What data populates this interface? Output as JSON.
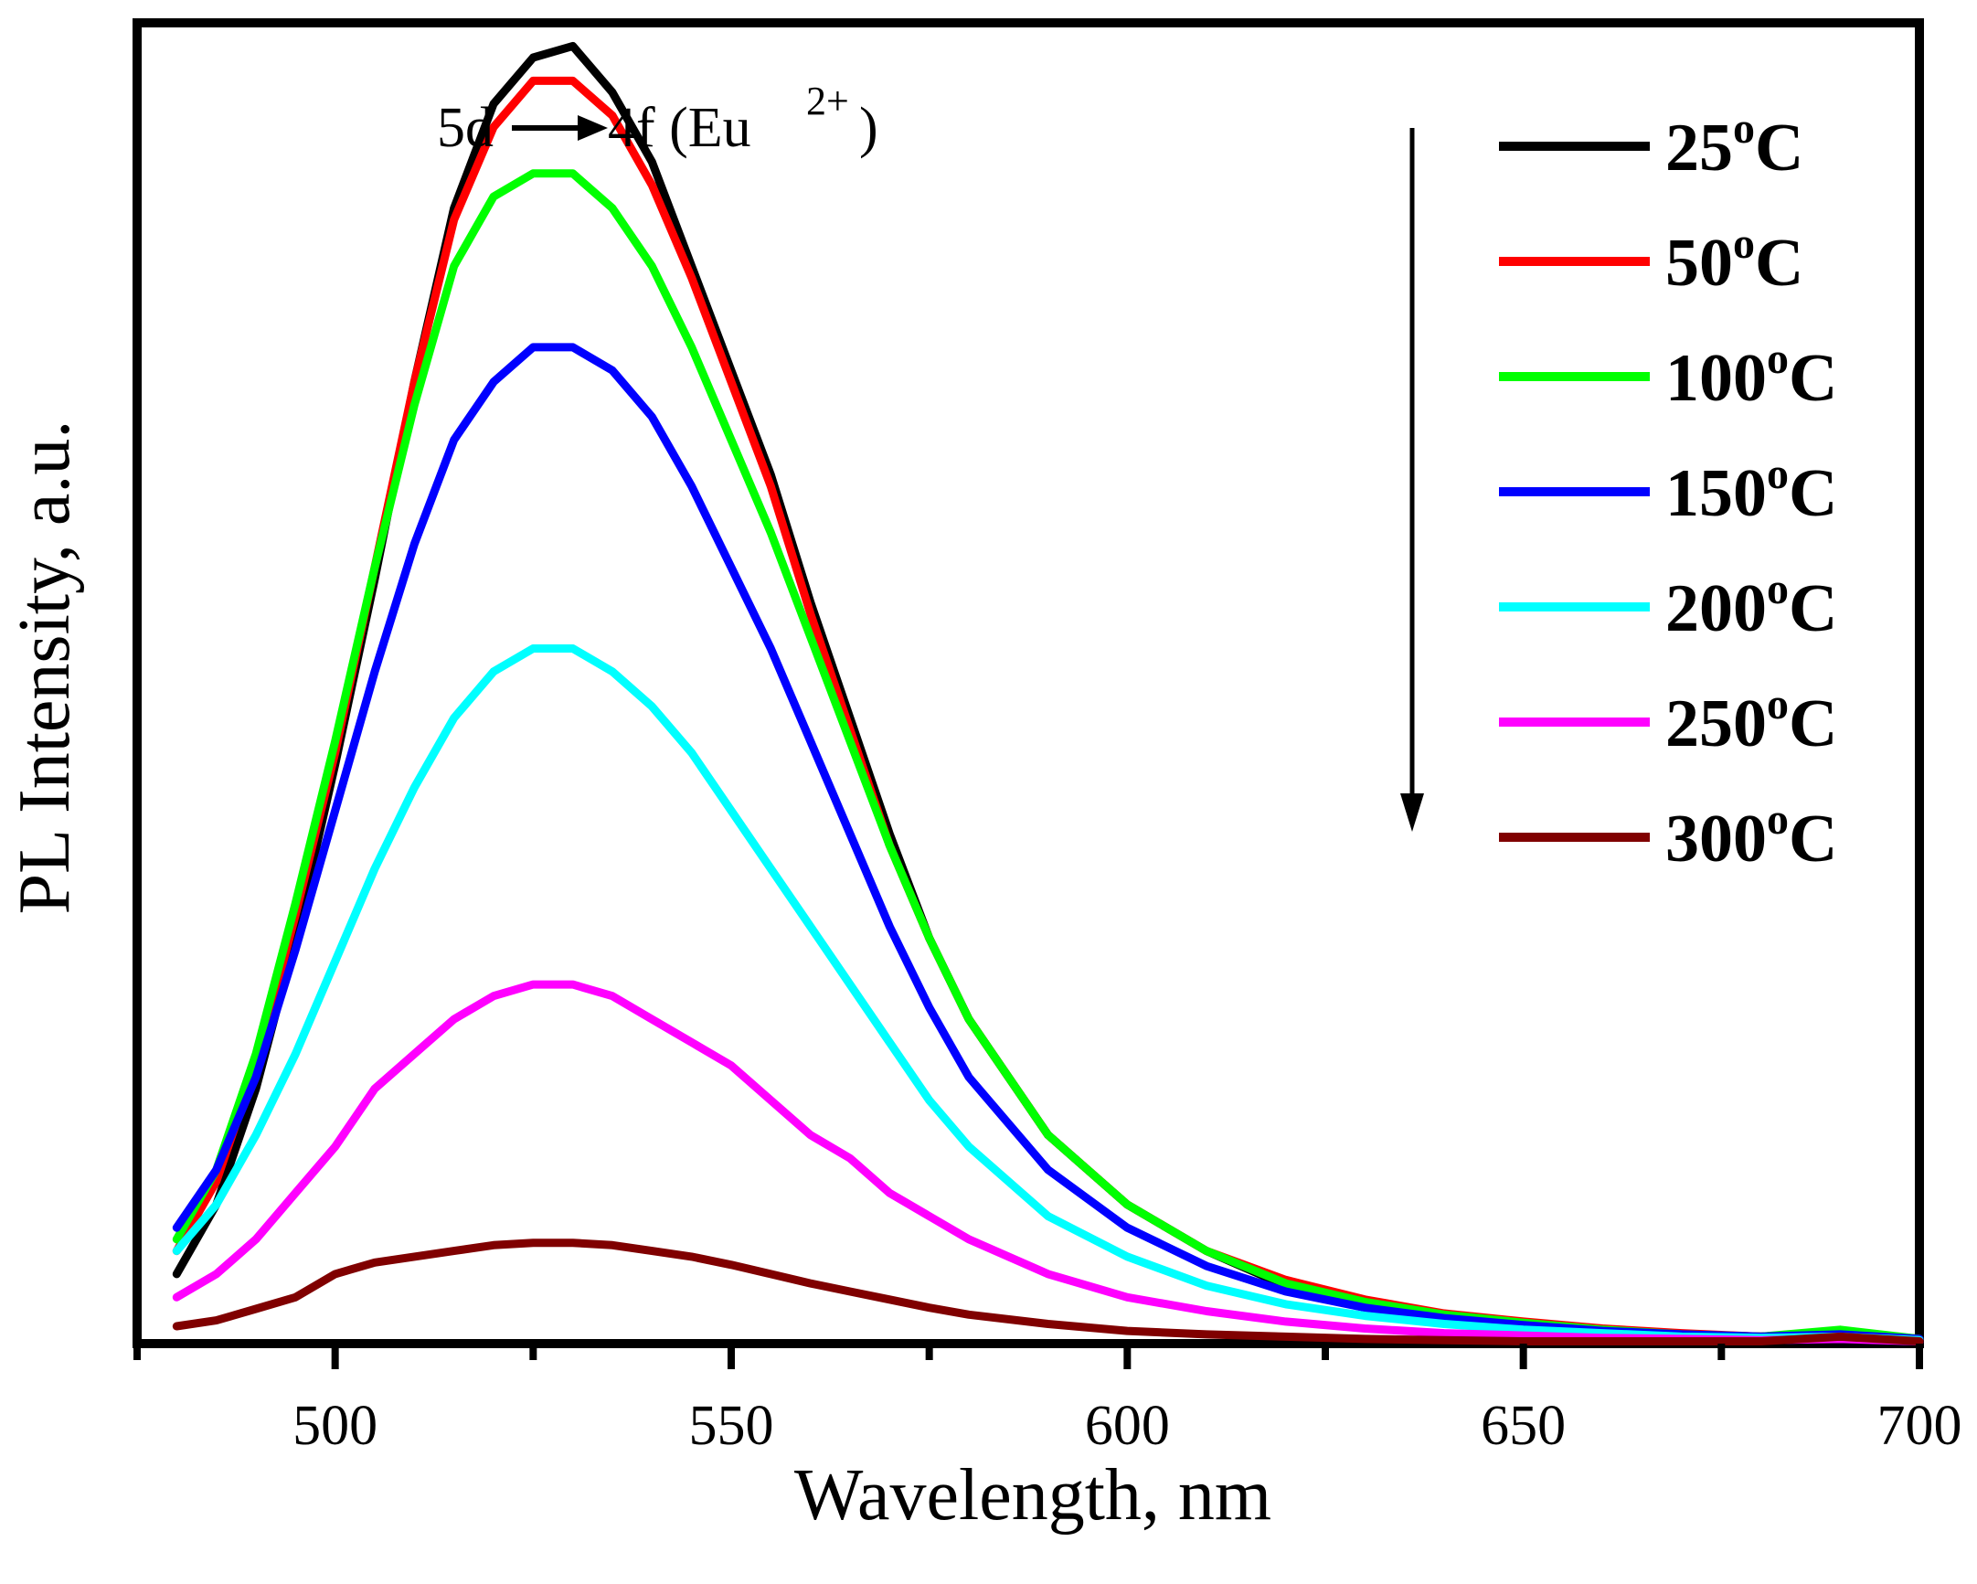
{
  "chart_data": {
    "type": "line",
    "title": "",
    "xlabel": "Wavelength, nm",
    "ylabel": "PL Intensity, a.u.",
    "xlim": [
      475,
      700
    ],
    "ylim": [
      0,
      1.14
    ],
    "x_ticks": [
      500,
      550,
      600,
      650,
      700
    ],
    "y_ticks_labeled": false,
    "grid": false,
    "legend_position": "top-right",
    "annotation": {
      "text_main": "5d",
      "text_mid": "4f (Eu",
      "text_sup": "2+",
      "text_end": ")",
      "arrow": "down arrow indicating decreasing intensity with temperature"
    },
    "x": [
      480,
      485,
      490,
      495,
      500,
      505,
      510,
      515,
      520,
      525,
      530,
      535,
      540,
      545,
      550,
      555,
      560,
      565,
      570,
      575,
      580,
      590,
      600,
      610,
      620,
      630,
      640,
      650,
      660,
      670,
      680,
      690,
      700
    ],
    "series": [
      {
        "name": "25",
        "unit": "oC",
        "color": "#000000",
        "values": [
          0.06,
          0.12,
          0.22,
          0.35,
          0.5,
          0.66,
          0.83,
          0.98,
          1.07,
          1.11,
          1.12,
          1.08,
          1.02,
          0.93,
          0.84,
          0.75,
          0.64,
          0.54,
          0.44,
          0.35,
          0.28,
          0.18,
          0.12,
          0.08,
          0.05,
          0.035,
          0.025,
          0.018,
          0.012,
          0.008,
          0.006,
          0.01,
          0.004
        ]
      },
      {
        "name": "50",
        "unit": "oC",
        "color": "#ff0000",
        "values": [
          0.08,
          0.14,
          0.24,
          0.37,
          0.51,
          0.67,
          0.83,
          0.97,
          1.05,
          1.09,
          1.09,
          1.06,
          1.0,
          0.92,
          0.83,
          0.74,
          0.63,
          0.53,
          0.43,
          0.35,
          0.28,
          0.18,
          0.12,
          0.08,
          0.055,
          0.038,
          0.026,
          0.019,
          0.013,
          0.009,
          0.006,
          0.01,
          0.004
        ]
      },
      {
        "name": "100",
        "unit": "oC",
        "color": "#00ff00",
        "values": [
          0.09,
          0.15,
          0.25,
          0.38,
          0.52,
          0.67,
          0.81,
          0.93,
          0.99,
          1.01,
          1.01,
          0.98,
          0.93,
          0.86,
          0.78,
          0.7,
          0.61,
          0.52,
          0.43,
          0.35,
          0.28,
          0.18,
          0.12,
          0.08,
          0.052,
          0.036,
          0.025,
          0.018,
          0.012,
          0.008,
          0.006,
          0.012,
          0.004
        ]
      },
      {
        "name": "150",
        "unit": "oC",
        "color": "#0000ff",
        "values": [
          0.1,
          0.15,
          0.23,
          0.34,
          0.46,
          0.58,
          0.69,
          0.78,
          0.83,
          0.86,
          0.86,
          0.84,
          0.8,
          0.74,
          0.67,
          0.6,
          0.52,
          0.44,
          0.36,
          0.29,
          0.23,
          0.15,
          0.1,
          0.067,
          0.045,
          0.031,
          0.022,
          0.016,
          0.011,
          0.008,
          0.006,
          0.008,
          0.004
        ]
      },
      {
        "name": "200",
        "unit": "oC",
        "color": "#00ffff",
        "values": [
          0.08,
          0.12,
          0.18,
          0.25,
          0.33,
          0.41,
          0.48,
          0.54,
          0.58,
          0.6,
          0.6,
          0.58,
          0.55,
          0.51,
          0.46,
          0.41,
          0.36,
          0.31,
          0.26,
          0.21,
          0.17,
          0.11,
          0.075,
          0.05,
          0.034,
          0.024,
          0.017,
          0.012,
          0.009,
          0.006,
          0.005,
          0.006,
          0.003
        ]
      },
      {
        "name": "250",
        "unit": "oC",
        "color": "#ff00ff",
        "values": [
          0.04,
          0.06,
          0.09,
          0.13,
          0.17,
          0.22,
          0.25,
          0.28,
          0.3,
          0.31,
          0.31,
          0.3,
          0.28,
          0.26,
          0.24,
          0.21,
          0.18,
          0.16,
          0.13,
          0.11,
          0.09,
          0.06,
          0.04,
          0.028,
          0.019,
          0.013,
          0.009,
          0.007,
          0.005,
          0.004,
          0.003,
          0.004,
          0.002
        ]
      },
      {
        "name": "300",
        "unit": "oC",
        "color": "#800000",
        "values": [
          0.015,
          0.02,
          0.03,
          0.04,
          0.06,
          0.07,
          0.075,
          0.08,
          0.085,
          0.087,
          0.087,
          0.085,
          0.08,
          0.075,
          0.068,
          0.06,
          0.052,
          0.045,
          0.038,
          0.031,
          0.025,
          0.017,
          0.011,
          0.008,
          0.006,
          0.004,
          0.003,
          0.002,
          0.002,
          0.002,
          0.002,
          0.006,
          0.002
        ]
      }
    ]
  }
}
